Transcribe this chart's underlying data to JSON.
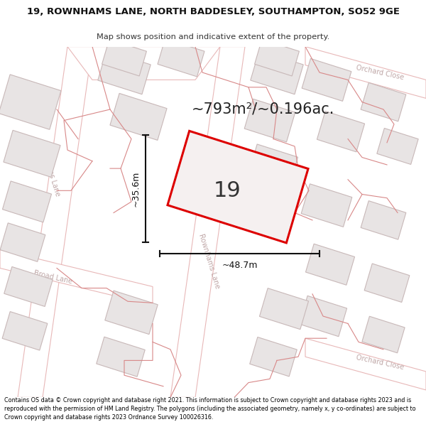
{
  "title_line1": "19, ROWNHAMS LANE, NORTH BADDESLEY, SOUTHAMPTON, SO52 9GE",
  "title_line2": "Map shows position and indicative extent of the property.",
  "area_text": "~793m²/~0.196ac.",
  "width_label": "~48.7m",
  "height_label": "~35.6m",
  "number_label": "19",
  "footer_text": "Contains OS data © Crown copyright and database right 2021. This information is subject to Crown copyright and database rights 2023 and is reproduced with the permission of HM Land Registry. The polygons (including the associated geometry, namely x, y co-ordinates) are subject to Crown copyright and database rights 2023 Ordnance Survey 100026316.",
  "map_bg": "#f7f4f4",
  "road_fill": "#ffffff",
  "road_edge": "#e8b8b8",
  "building_fill": "#e8e4e4",
  "building_edge": "#c8b8b8",
  "plot_edge": "#d88888",
  "property_color": "#dd0000",
  "property_fill": "#f5f0f0",
  "label_color": "#c0a8a8",
  "dim_color": "#111111",
  "text_color": "#222222"
}
